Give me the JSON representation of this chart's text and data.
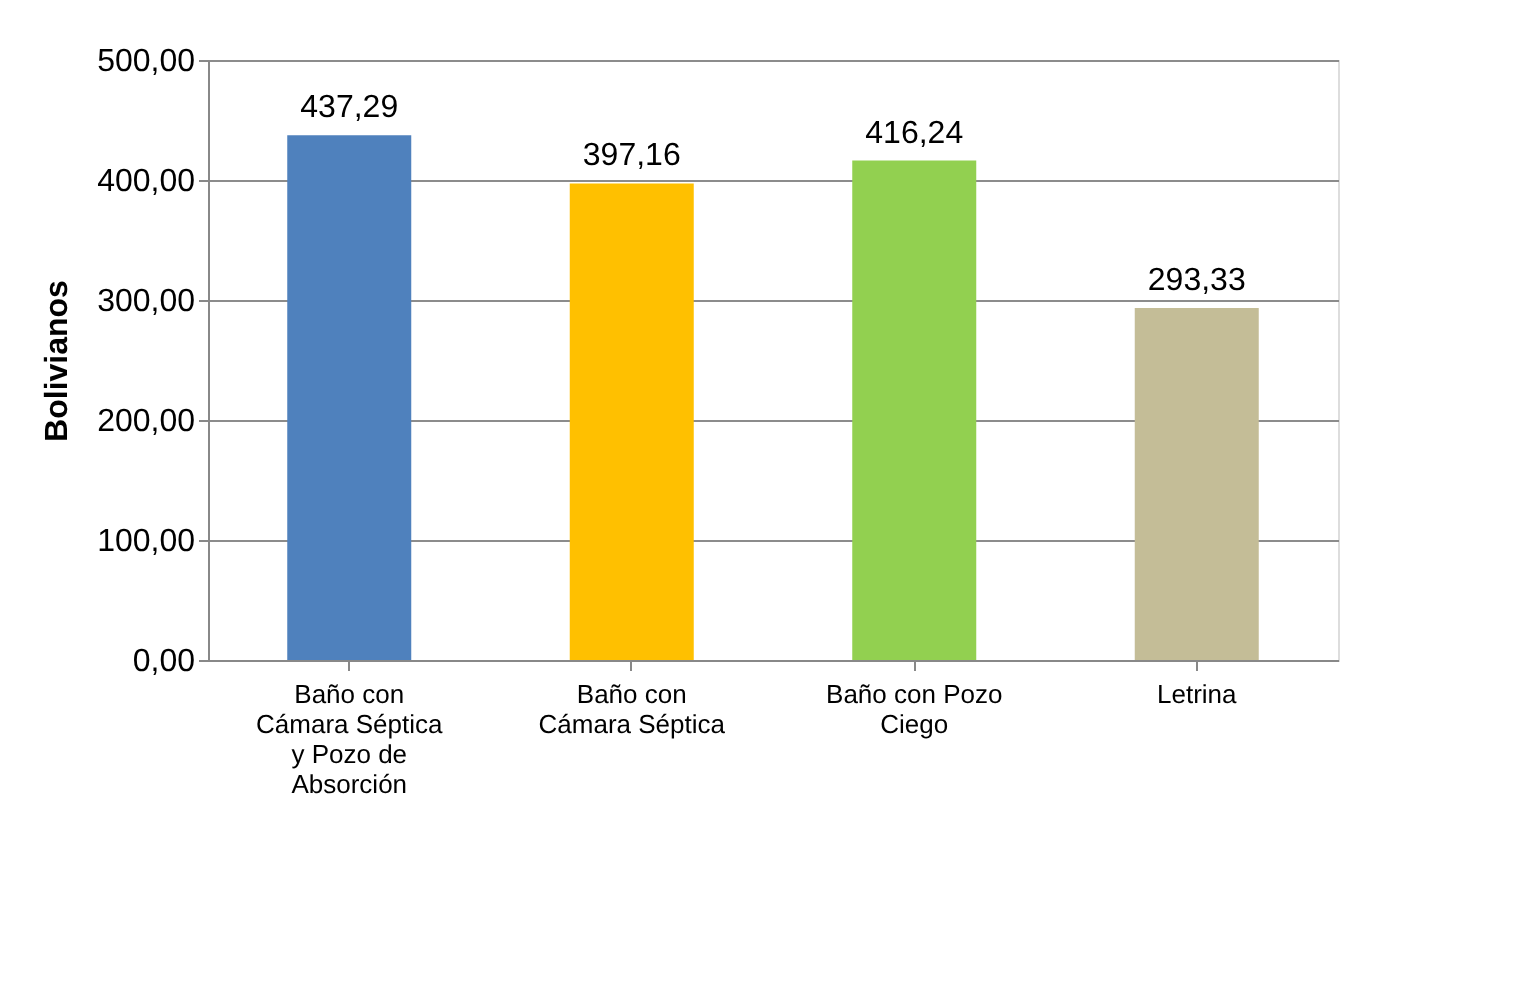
{
  "chart_data": {
    "type": "bar",
    "ylabel": "Bolivianos",
    "categories": [
      "Baño con Cámara Séptica y Pozo de Absorción",
      "Baño con Cámara Séptica",
      "Baño con Pozo Ciego",
      "Letrina"
    ],
    "values": [
      437.29,
      397.16,
      416.24,
      293.33
    ],
    "colors": [
      "#4f81bd",
      "#ffc000",
      "#92d050",
      "#c4bd97"
    ],
    "value_labels": [
      "437,29",
      "397,16",
      "416,24",
      "293,33"
    ],
    "ylim": [
      0,
      500
    ],
    "yticks": [
      {
        "value": 0,
        "label": "0,00"
      },
      {
        "value": 100,
        "label": "100,00"
      },
      {
        "value": 200,
        "label": "200,00"
      },
      {
        "value": 300,
        "label": "300,00"
      },
      {
        "value": 400,
        "label": "400,00"
      },
      {
        "value": 500,
        "label": "500,00"
      }
    ],
    "grid": "y"
  }
}
